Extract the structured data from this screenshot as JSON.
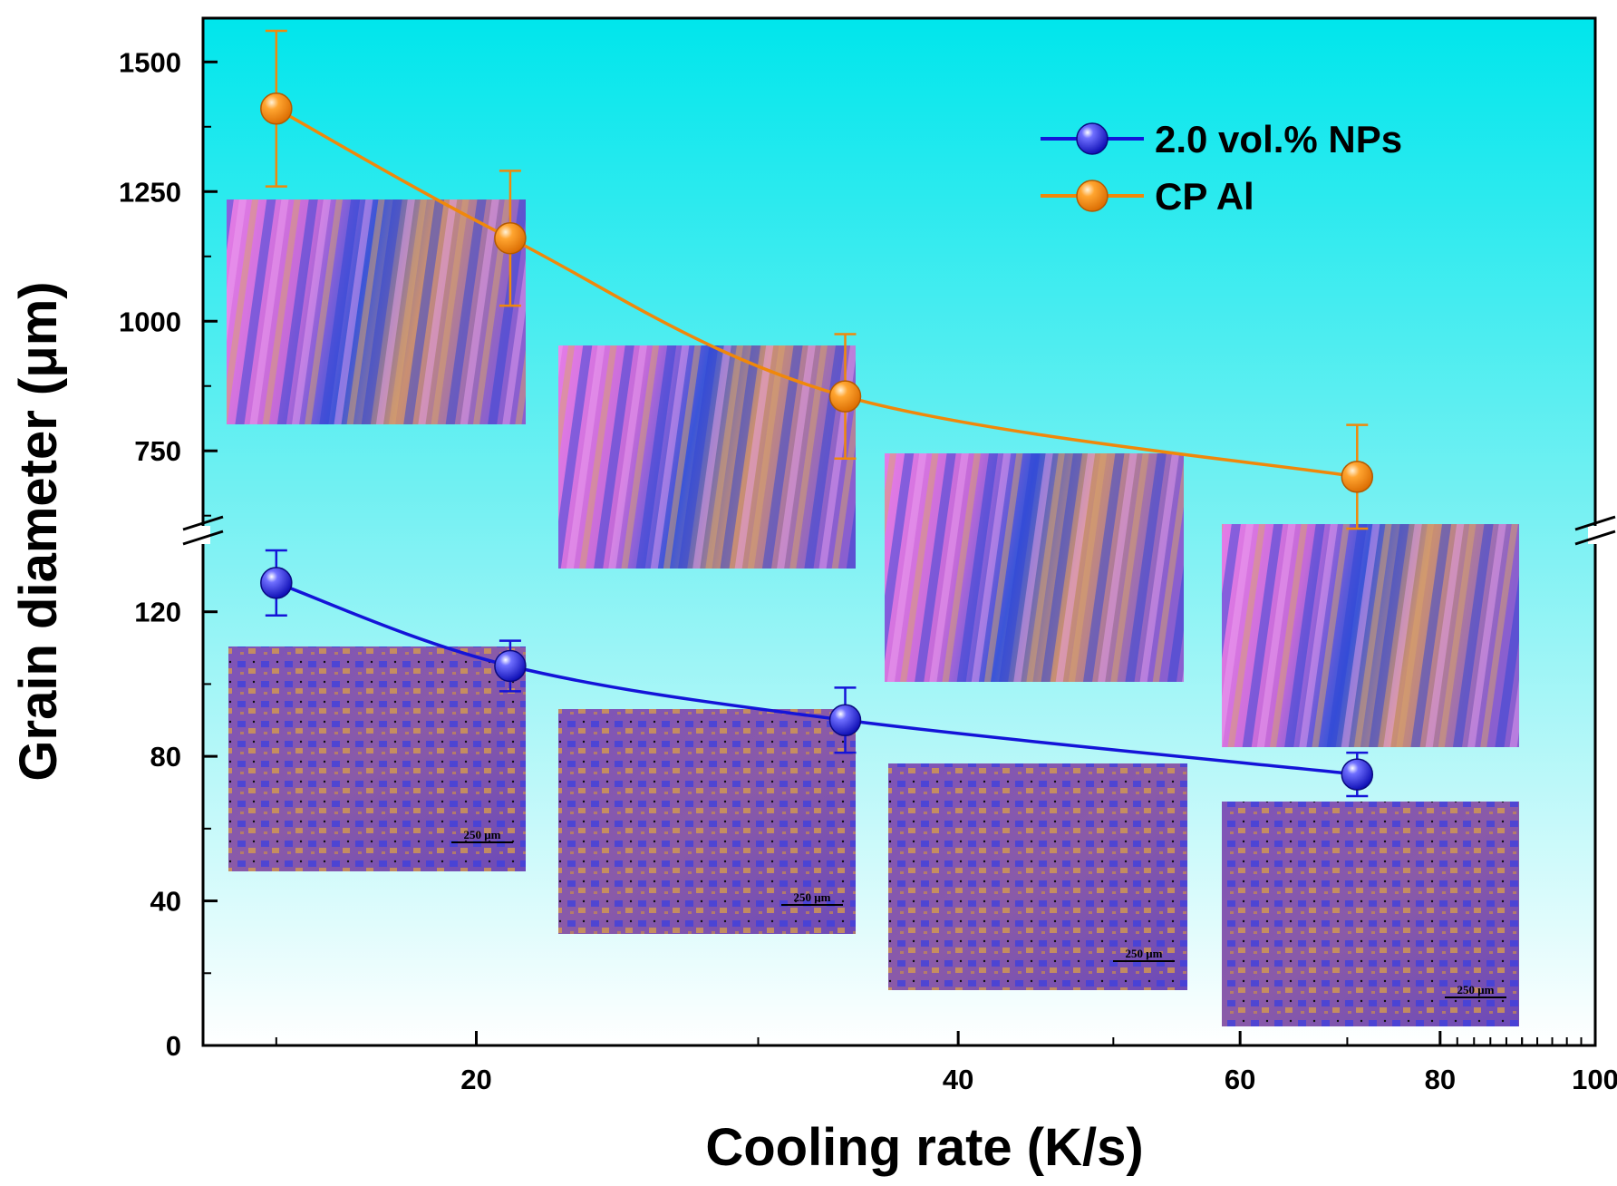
{
  "chart_data": {
    "type": "line",
    "xlabel": "Cooling rate (K/s)",
    "ylabel": "Grain diameter (μm)",
    "x_scale": "log",
    "xlim": [
      13.5,
      100
    ],
    "x_ticks": [
      20,
      40,
      60,
      80,
      100
    ],
    "y_axis_break": true,
    "ylim_lower": [
      0,
      140
    ],
    "ylim_upper": [
      600,
      1560
    ],
    "y_ticks_lower": [
      0,
      40,
      80,
      120
    ],
    "y_ticks_upper": [
      750,
      1000,
      1250,
      1500
    ],
    "legend_position": "top-right",
    "series": [
      {
        "name": "2.0 vol.% NPs",
        "color": "#1414d8",
        "x": [
          15,
          21,
          34,
          71
        ],
        "y": [
          128,
          105,
          90,
          75
        ],
        "error": [
          9,
          7,
          9,
          6
        ]
      },
      {
        "name": "CP Al",
        "color": "#f0880a",
        "x": [
          15,
          21,
          34,
          71
        ],
        "y": [
          1410,
          1160,
          855,
          700
        ],
        "error": [
          150,
          130,
          120,
          100
        ]
      }
    ],
    "insets": [
      {
        "series": "CP Al",
        "scale_text": ""
      },
      {
        "series": "CP Al",
        "scale_text": ""
      },
      {
        "series": "CP Al",
        "scale_text": ""
      },
      {
        "series": "CP Al",
        "scale_text": ""
      },
      {
        "series": "2.0 vol.% NPs",
        "scale_text": "250 μm"
      },
      {
        "series": "2.0 vol.% NPs",
        "scale_text": "250 μm"
      },
      {
        "series": "2.0 vol.% NPs",
        "scale_text": "250 μm"
      },
      {
        "series": "2.0 vol.% NPs",
        "scale_text": "250 μm"
      }
    ]
  }
}
